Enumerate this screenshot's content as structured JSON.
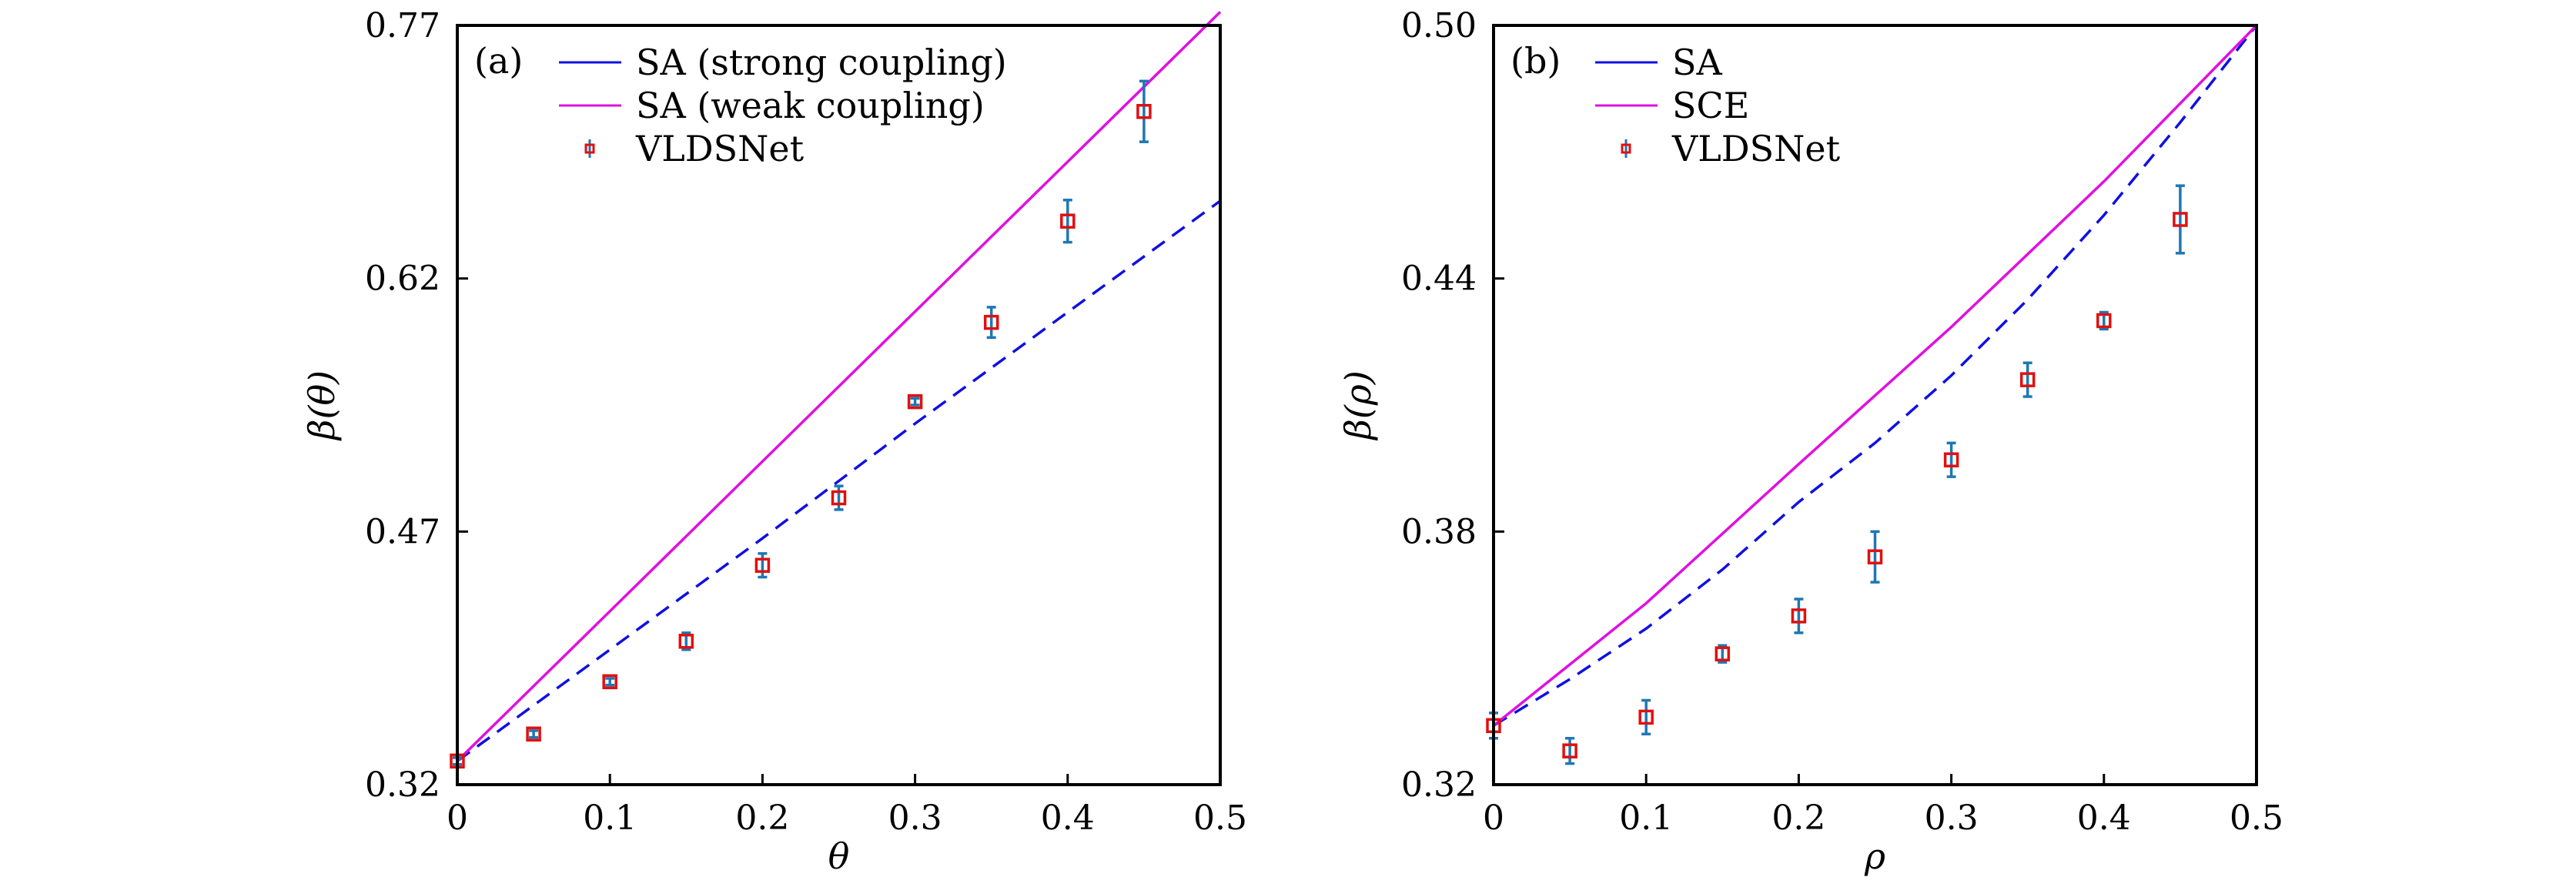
{
  "chart_data": [
    {
      "type": "line",
      "panel_label": "(a)",
      "xlabel": "θ",
      "ylabel": "β(θ)",
      "xlim": [
        0,
        0.5
      ],
      "ylim": [
        0.32,
        0.77
      ],
      "xticks": [
        "0",
        "0.1",
        "0.2",
        "0.3",
        "0.4",
        "0.5"
      ],
      "yticks": [
        "0.32",
        "0.47",
        "0.62",
        "0.77"
      ],
      "legend_position": "top-left",
      "series": [
        {
          "name": "SA (strong coupling)",
          "style": "dashed",
          "color": "#1010e0",
          "x": [
            0,
            0.1,
            0.2,
            0.3,
            0.4,
            0.5
          ],
          "y": [
            0.334,
            0.4,
            0.466,
            0.534,
            0.6,
            0.666
          ]
        },
        {
          "name": "SA (weak coupling)",
          "style": "solid",
          "color": "#e010e0",
          "x": [
            0,
            0.5
          ],
          "y": [
            0.334,
            0.778
          ]
        },
        {
          "name": "VLDSNet",
          "style": "errorbar",
          "color": "#e01010",
          "error_color": "#1f77b4",
          "x": [
            0,
            0.05,
            0.1,
            0.15,
            0.2,
            0.25,
            0.3,
            0.35,
            0.4,
            0.45
          ],
          "y": [
            0.334,
            0.35,
            0.381,
            0.405,
            0.45,
            0.49,
            0.547,
            0.594,
            0.654,
            0.719
          ],
          "err": [
            0.002,
            0.002,
            0.002,
            0.005,
            0.007,
            0.007,
            0.002,
            0.009,
            0.0125,
            0.018
          ]
        }
      ]
    },
    {
      "type": "line",
      "panel_label": "(b)",
      "xlabel": "ρ",
      "ylabel": "β(ρ)",
      "xlim": [
        0,
        0.5
      ],
      "ylim": [
        0.32,
        0.5
      ],
      "xticks": [
        "0",
        "0.1",
        "0.2",
        "0.3",
        "0.4",
        "0.5"
      ],
      "yticks": [
        "0.32",
        "0.38",
        "0.44",
        "0.50"
      ],
      "legend_position": "top-left",
      "series": [
        {
          "name": "SA",
          "style": "dashed",
          "color": "#1010e0",
          "x": [
            0,
            0.05,
            0.1,
            0.15,
            0.2,
            0.25,
            0.3,
            0.35,
            0.4,
            0.45,
            0.5
          ],
          "y": [
            0.334,
            0.345,
            0.357,
            0.371,
            0.387,
            0.401,
            0.417,
            0.435,
            0.455,
            0.477,
            0.5
          ]
        },
        {
          "name": "SCE",
          "style": "solid",
          "color": "#e010e0",
          "x": [
            0,
            0.1,
            0.2,
            0.3,
            0.4,
            0.5
          ],
          "y": [
            0.334,
            0.363,
            0.396,
            0.4285,
            0.463,
            0.5
          ]
        },
        {
          "name": "VLDSNet",
          "style": "errorbar",
          "color": "#e01010",
          "error_color": "#1f77b4",
          "x": [
            0,
            0.05,
            0.1,
            0.15,
            0.2,
            0.25,
            0.3,
            0.35,
            0.4,
            0.45
          ],
          "y": [
            0.334,
            0.328,
            0.336,
            0.351,
            0.36,
            0.374,
            0.397,
            0.416,
            0.43,
            0.454
          ],
          "err": [
            0.003,
            0.003,
            0.004,
            0.002,
            0.004,
            0.006,
            0.004,
            0.004,
            0.002,
            0.008
          ]
        }
      ]
    }
  ]
}
